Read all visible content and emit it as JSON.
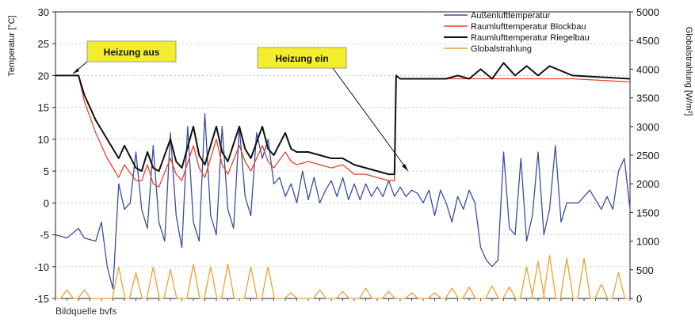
{
  "chart_data": {
    "type": "line",
    "caption": "Bildquelle bvfs",
    "xlabel": "",
    "ylabel_left": "Temperatur [°C]",
    "ylabel_right": "Globalstrahlung [W/m²]",
    "ylim_left": [
      -15,
      30
    ],
    "ylim_right": [
      0,
      5000
    ],
    "yticks_left": [
      "30",
      "25",
      "20",
      "15",
      "10",
      "5",
      "0",
      "-5",
      "-10",
      "-15"
    ],
    "yticks_right": [
      "5000",
      "4500",
      "4000",
      "3500",
      "3000",
      "2500",
      "2000",
      "1500",
      "1000",
      "500",
      "0"
    ],
    "grid": "horizontal",
    "legend_position": "top-right",
    "x_range": [
      0,
      100
    ],
    "annotations": [
      {
        "text": "Heizung aus",
        "x": 3,
        "y": 20
      },
      {
        "text": "Heizung ein",
        "x": 58,
        "y": 4.5
      }
    ],
    "series": [
      {
        "name": "Außenlufttemperatur",
        "color": "#3a4f9e",
        "axis": "left",
        "x": [
          0,
          2,
          4,
          5,
          7,
          8,
          9,
          10,
          11,
          12,
          13,
          14,
          15,
          16,
          17,
          18,
          19,
          20,
          21,
          22,
          23,
          24,
          25,
          26,
          27,
          28,
          29,
          30,
          31,
          32,
          33,
          34,
          35,
          36,
          37,
          38,
          39,
          40,
          41,
          42,
          43,
          44,
          45,
          46,
          47,
          48,
          49,
          50,
          51,
          52,
          53,
          54,
          55,
          56,
          57,
          58,
          59,
          60,
          61,
          62,
          63,
          64,
          65,
          66,
          67,
          68,
          69,
          70,
          71,
          72,
          73,
          74,
          75,
          76,
          77,
          78,
          79,
          80,
          81,
          82,
          83,
          84,
          85,
          86,
          87,
          88,
          89,
          90,
          91,
          92,
          93,
          94,
          95,
          96,
          97,
          98,
          99,
          100
        ],
        "values": [
          -5,
          -5.5,
          -4,
          -5.5,
          -6,
          -3,
          -10,
          -13.5,
          3,
          -1,
          0,
          8,
          -1,
          -4,
          9,
          -3,
          -6,
          11,
          -2,
          -7,
          12,
          -3,
          -6,
          14,
          -2,
          -5,
          12,
          -1,
          -4,
          12,
          1,
          -2,
          11,
          7,
          10,
          3,
          4,
          1,
          3,
          0,
          5,
          0.5,
          4,
          0,
          2,
          3.5,
          1,
          4,
          0.5,
          3,
          0.5,
          3,
          1,
          2.5,
          1,
          3.5,
          1,
          2.5,
          1,
          2,
          1.5,
          0,
          2,
          -2,
          2,
          0,
          -3,
          1,
          -1,
          2,
          0,
          -7,
          -9,
          -10,
          -9,
          8,
          -4,
          -5,
          7,
          -6,
          -2,
          8,
          -5,
          -1,
          9,
          -3,
          0,
          0,
          0,
          1,
          2,
          0.5,
          -1,
          1,
          -1,
          5,
          7,
          -1
        ]
      },
      {
        "name": "Raumlufttemperatur Blockbau",
        "color": "#e8452a",
        "axis": "left",
        "x": [
          0,
          2,
          4,
          5,
          7,
          9,
          11,
          12,
          14,
          15,
          16,
          17,
          18,
          20,
          21,
          22,
          24,
          25,
          26,
          28,
          29,
          30,
          32,
          33,
          34,
          36,
          37,
          38,
          40,
          41,
          42,
          44,
          46,
          48,
          50,
          52,
          54,
          56,
          58,
          59,
          59.3,
          60,
          70,
          80,
          90,
          100
        ],
        "values": [
          20,
          20,
          20,
          16,
          11,
          7,
          4,
          6,
          3.5,
          3.5,
          6,
          3,
          2.5,
          7,
          4.5,
          3.5,
          9,
          5.5,
          4,
          10,
          6,
          4.5,
          9,
          6.5,
          5,
          9,
          6.5,
          5.5,
          8,
          6.5,
          6,
          6.5,
          6,
          5.5,
          6,
          4.5,
          4.5,
          4,
          3.5,
          3.5,
          20,
          19.5,
          19.5,
          19.5,
          19.5,
          19
        ]
      },
      {
        "name": "Raumlufttemperatur Riegelbau",
        "color": "#111111",
        "axis": "left",
        "x": [
          0,
          2,
          4,
          5,
          7,
          9,
          11,
          12,
          14,
          15,
          16,
          17,
          18,
          20,
          21,
          22,
          24,
          25,
          26,
          28,
          29,
          30,
          32,
          33,
          34,
          36,
          37,
          38,
          40,
          41,
          42,
          44,
          46,
          48,
          50,
          52,
          54,
          56,
          58,
          59,
          59.3,
          60,
          68,
          70,
          72,
          74,
          76,
          78,
          80,
          82,
          84,
          86,
          90,
          100
        ],
        "values": [
          20,
          20,
          20,
          17,
          13,
          10,
          7,
          9,
          5.5,
          5,
          8,
          5.5,
          5,
          10,
          6.5,
          5.5,
          12,
          7.5,
          6,
          12,
          8,
          6.5,
          12,
          8.5,
          7,
          12,
          8.5,
          7.5,
          11,
          8.5,
          8,
          8,
          7.5,
          7,
          7,
          6,
          5.5,
          5,
          4.5,
          4.5,
          20,
          19.5,
          19.5,
          20,
          19.5,
          21,
          19.5,
          22,
          20,
          21.5,
          20,
          21.5,
          20,
          19.5
        ]
      },
      {
        "name": "Globalstrahlung",
        "color": "#f0a030",
        "axis": "right",
        "peaks": [
          {
            "x": 2,
            "value": 150
          },
          {
            "x": 5,
            "value": 150
          },
          {
            "x": 11,
            "value": 550
          },
          {
            "x": 14,
            "value": 450
          },
          {
            "x": 17,
            "value": 550
          },
          {
            "x": 20,
            "value": 500
          },
          {
            "x": 24,
            "value": 600
          },
          {
            "x": 27,
            "value": 550
          },
          {
            "x": 30,
            "value": 600
          },
          {
            "x": 34,
            "value": 550
          },
          {
            "x": 37,
            "value": 550
          },
          {
            "x": 41,
            "value": 100
          },
          {
            "x": 46,
            "value": 150
          },
          {
            "x": 50,
            "value": 120
          },
          {
            "x": 54,
            "value": 180
          },
          {
            "x": 58,
            "value": 120
          },
          {
            "x": 62,
            "value": 100
          },
          {
            "x": 66,
            "value": 100
          },
          {
            "x": 69,
            "value": 180
          },
          {
            "x": 72,
            "value": 200
          },
          {
            "x": 76,
            "value": 220
          },
          {
            "x": 79,
            "value": 200
          },
          {
            "x": 82,
            "value": 550
          },
          {
            "x": 84,
            "value": 650
          },
          {
            "x": 86,
            "value": 750
          },
          {
            "x": 89,
            "value": 700
          },
          {
            "x": 92,
            "value": 700
          },
          {
            "x": 95,
            "value": 250
          },
          {
            "x": 98,
            "value": 450
          }
        ]
      }
    ]
  }
}
